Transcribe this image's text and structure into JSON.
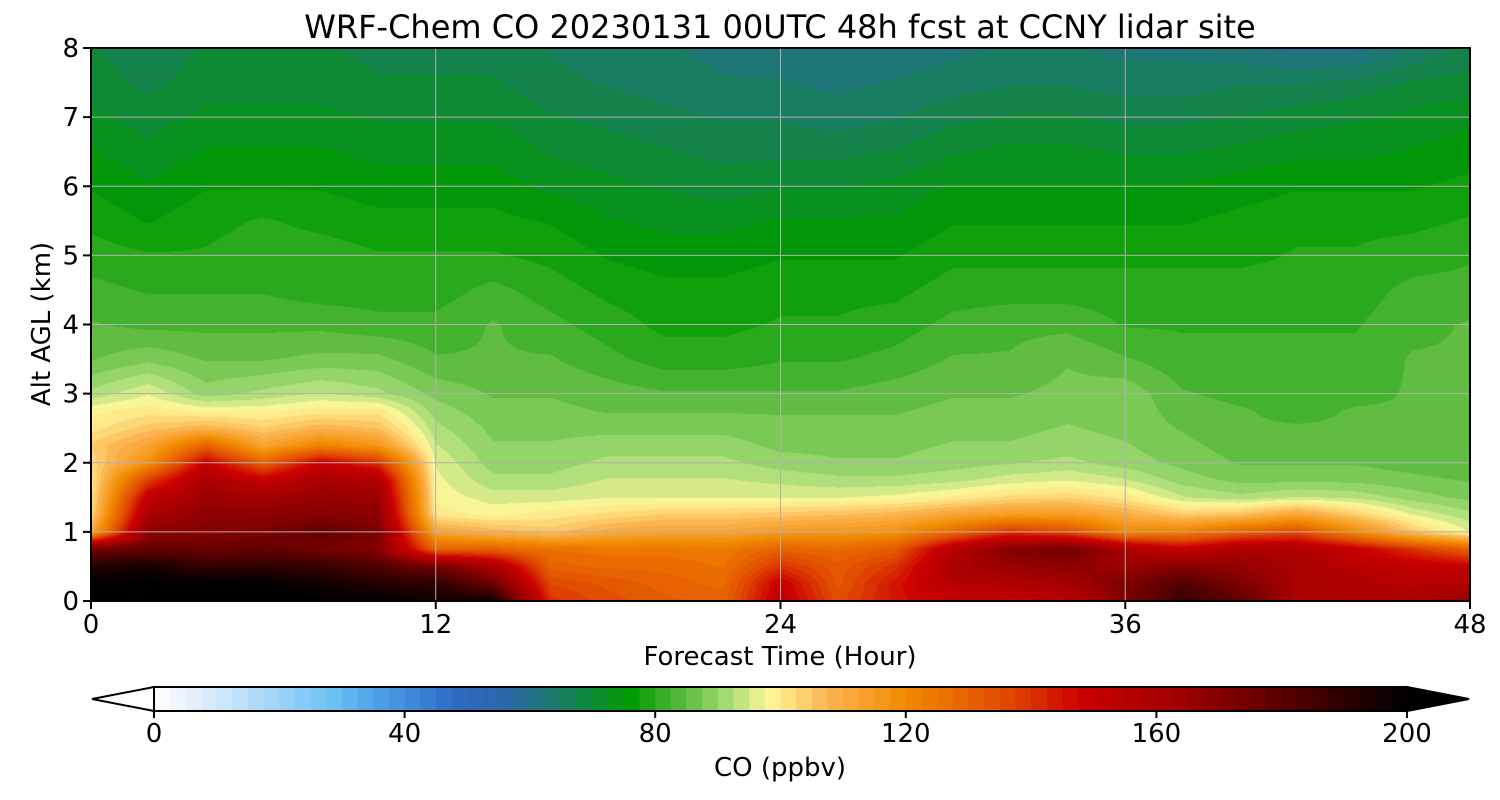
{
  "chart_data": {
    "type": "heatmap",
    "title": "WRF-Chem CO  20230131 00UTC 48h fcst at CCNY lidar site",
    "xlabel": "Forecast Time (Hour)",
    "ylabel": "Alt AGL (km)",
    "xlim": [
      0,
      48
    ],
    "ylim": [
      0,
      8
    ],
    "xticks": [
      0,
      12,
      24,
      36,
      48
    ],
    "yticks": [
      0,
      1,
      2,
      3,
      4,
      5,
      6,
      7,
      8
    ],
    "grid": true,
    "colorbar": {
      "label": "CO  (ppbv)",
      "range": [
        0,
        200
      ],
      "ticks": [
        0,
        40,
        80,
        120,
        160,
        200
      ],
      "extend": "both",
      "orientation": "horizontal",
      "stops": [
        {
          "value": 0,
          "color": "#ffffff"
        },
        {
          "value": 8,
          "color": "#dcecfb"
        },
        {
          "value": 20,
          "color": "#9fd2f6"
        },
        {
          "value": 28,
          "color": "#6ec3f5"
        },
        {
          "value": 36,
          "color": "#4b9fe6"
        },
        {
          "value": 48,
          "color": "#2f6ac4"
        },
        {
          "value": 56,
          "color": "#2d66a8"
        },
        {
          "value": 64,
          "color": "#1b7a6a"
        },
        {
          "value": 76,
          "color": "#009a00"
        },
        {
          "value": 84,
          "color": "#55b83a"
        },
        {
          "value": 92,
          "color": "#a9dd78"
        },
        {
          "value": 98,
          "color": "#fff79a"
        },
        {
          "value": 108,
          "color": "#fbb24d"
        },
        {
          "value": 120,
          "color": "#f28a00"
        },
        {
          "value": 136,
          "color": "#e04a00"
        },
        {
          "value": 148,
          "color": "#cc0000"
        },
        {
          "value": 164,
          "color": "#9e0000"
        },
        {
          "value": 180,
          "color": "#5a0000"
        },
        {
          "value": 200,
          "color": "#000000"
        }
      ]
    },
    "time_hours": [
      0,
      2,
      4,
      6,
      8,
      10,
      12,
      14,
      16,
      18,
      20,
      22,
      24,
      26,
      28,
      30,
      32,
      34,
      36,
      38,
      40,
      42,
      44,
      46,
      48
    ],
    "altitude_km": [
      0,
      0.25,
      0.5,
      0.75,
      1,
      1.25,
      1.5,
      1.75,
      2,
      2.25,
      2.5,
      2.75,
      3,
      3.5,
      4,
      4.5,
      5,
      5.5,
      6,
      6.5,
      7,
      7.5,
      8
    ],
    "co_ppbv": [
      [
        200,
        200,
        200,
        200,
        200,
        200,
        196,
        196,
        140,
        135,
        132,
        130,
        152,
        135,
        145,
        150,
        150,
        155,
        170,
        188,
        178,
        160,
        158,
        160,
        165
      ],
      [
        200,
        200,
        200,
        200,
        196,
        192,
        190,
        176,
        136,
        133,
        130,
        128,
        150,
        133,
        145,
        156,
        158,
        162,
        172,
        182,
        172,
        160,
        158,
        155,
        158
      ],
      [
        192,
        196,
        188,
        190,
        188,
        182,
        174,
        160,
        130,
        128,
        128,
        126,
        140,
        132,
        140,
        160,
        165,
        168,
        164,
        170,
        166,
        160,
        155,
        152,
        150
      ],
      [
        175,
        178,
        176,
        178,
        174,
        170,
        130,
        130,
        126,
        125,
        125,
        124,
        130,
        128,
        132,
        156,
        170,
        175,
        160,
        150,
        160,
        158,
        150,
        140,
        130
      ],
      [
        110,
        168,
        170,
        172,
        178,
        172,
        112,
        108,
        105,
        110,
        112,
        112,
        115,
        116,
        118,
        128,
        140,
        135,
        120,
        122,
        130,
        135,
        120,
        105,
        96
      ],
      [
        102,
        160,
        168,
        168,
        170,
        168,
        100,
        98,
        100,
        102,
        104,
        104,
        105,
        106,
        108,
        112,
        115,
        115,
        110,
        104,
        106,
        112,
        104,
        96,
        92
      ],
      [
        100,
        152,
        164,
        162,
        166,
        164,
        98,
        95,
        95,
        96,
        96,
        96,
        96,
        96,
        97,
        99,
        102,
        103,
        100,
        94,
        92,
        94,
        93,
        90,
        88
      ],
      [
        100,
        138,
        160,
        150,
        160,
        158,
        97,
        92,
        92,
        94,
        94,
        94,
        93,
        92,
        92,
        93,
        95,
        96,
        94,
        90,
        88,
        88,
        88,
        87,
        86
      ],
      [
        102,
        118,
        150,
        130,
        150,
        140,
        96,
        90,
        90,
        92,
        92,
        92,
        90,
        89,
        89,
        90,
        91,
        92,
        90,
        88,
        86,
        86,
        86,
        85,
        84
      ],
      [
        104,
        112,
        130,
        112,
        122,
        116,
        94,
        89,
        89,
        90,
        90,
        90,
        88,
        88,
        88,
        89,
        89,
        90,
        89,
        87,
        85,
        85,
        85,
        84,
        84
      ],
      [
        100,
        105,
        108,
        104,
        108,
        106,
        92,
        88,
        88,
        88,
        88,
        88,
        87,
        87,
        87,
        88,
        88,
        89,
        88,
        86,
        84,
        84,
        84,
        84,
        84
      ],
      [
        98,
        100,
        98,
        98,
        100,
        100,
        90,
        87,
        87,
        86,
        86,
        86,
        86,
        86,
        86,
        87,
        87,
        88,
        88,
        85,
        84,
        83,
        84,
        84,
        84
      ],
      [
        92,
        96,
        90,
        92,
        94,
        92,
        88,
        86,
        86,
        85,
        84,
        84,
        84,
        84,
        85,
        86,
        86,
        87,
        88,
        84,
        83,
        83,
        83,
        84,
        84
      ],
      [
        86,
        88,
        86,
        86,
        87,
        87,
        84,
        84,
        84,
        82,
        80,
        80,
        81,
        81,
        82,
        84,
        84,
        86,
        84,
        82,
        82,
        82,
        82,
        84,
        84
      ],
      [
        84,
        83,
        83,
        83,
        83,
        82,
        82,
        84,
        82,
        80,
        78,
        78,
        79,
        79,
        80,
        82,
        83,
        83,
        81,
        81,
        81,
        81,
        81,
        83,
        84
      ],
      [
        82,
        81,
        81,
        81,
        80,
        80,
        80,
        82,
        80,
        78,
        77,
        77,
        78,
        78,
        78,
        80,
        80,
        80,
        80,
        80,
        80,
        80,
        80,
        82,
        82
      ],
      [
        80,
        79,
        79,
        80,
        80,
        79,
        79,
        79,
        78,
        76,
        75,
        75,
        76,
        76,
        76,
        78,
        78,
        78,
        78,
        78,
        78,
        79,
        79,
        80,
        81
      ],
      [
        78,
        76,
        78,
        79,
        78,
        77,
        77,
        77,
        76,
        74,
        73,
        73,
        74,
        74,
        74,
        76,
        76,
        76,
        76,
        76,
        77,
        78,
        78,
        78,
        79
      ],
      [
        76,
        74,
        76,
        76,
        76,
        75,
        75,
        75,
        73,
        72,
        71,
        70,
        71,
        71,
        72,
        74,
        74,
        74,
        74,
        74,
        75,
        76,
        76,
        76,
        77
      ],
      [
        74,
        72,
        74,
        74,
        74,
        73,
        73,
        73,
        71,
        70,
        69,
        68,
        68,
        68,
        69,
        71,
        72,
        72,
        71,
        71,
        72,
        73,
        73,
        74,
        75
      ],
      [
        72,
        70,
        72,
        72,
        72,
        71,
        71,
        71,
        69,
        68,
        67,
        66,
        66,
        65,
        66,
        68,
        69,
        69,
        68,
        68,
        69,
        70,
        71,
        72,
        73
      ],
      [
        70,
        68,
        70,
        70,
        70,
        69,
        69,
        69,
        67,
        66,
        65,
        64,
        64,
        63,
        64,
        65,
        66,
        66,
        65,
        65,
        66,
        66,
        67,
        69,
        70
      ],
      [
        69,
        67,
        69,
        69,
        69,
        68,
        68,
        68,
        66,
        65,
        64,
        63,
        62,
        62,
        62,
        63,
        64,
        64,
        63,
        63,
        62,
        60,
        60,
        64,
        67
      ]
    ]
  }
}
